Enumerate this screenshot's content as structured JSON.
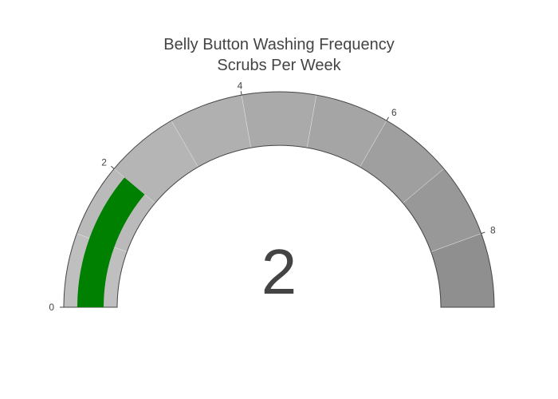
{
  "chart_data": {
    "type": "gauge",
    "title": "Belly Button Washing Frequency",
    "subtitle": "Scrubs Per Week",
    "value": 2,
    "value_label": "2",
    "range": [
      0,
      9
    ],
    "bar_color": "#008000",
    "ticks": [
      {
        "value": 0,
        "label": "0"
      },
      {
        "value": 2,
        "label": "2"
      },
      {
        "value": 4,
        "label": "4"
      },
      {
        "value": 6,
        "label": "6"
      },
      {
        "value": 8,
        "label": "8"
      }
    ],
    "steps": [
      {
        "range": [
          0,
          1
        ],
        "color": "#bfbfbf"
      },
      {
        "range": [
          1,
          2
        ],
        "color": "#bababa"
      },
      {
        "range": [
          2,
          3
        ],
        "color": "#b5b5b5"
      },
      {
        "range": [
          3,
          4
        ],
        "color": "#b0b0b0"
      },
      {
        "range": [
          4,
          5
        ],
        "color": "#aaaaaa"
      },
      {
        "range": [
          5,
          6
        ],
        "color": "#a5a5a5"
      },
      {
        "range": [
          6,
          7
        ],
        "color": "#9f9f9f"
      },
      {
        "range": [
          7,
          8
        ],
        "color": "#989898"
      },
      {
        "range": [
          8,
          9
        ],
        "color": "#8f8f8f"
      }
    ]
  }
}
